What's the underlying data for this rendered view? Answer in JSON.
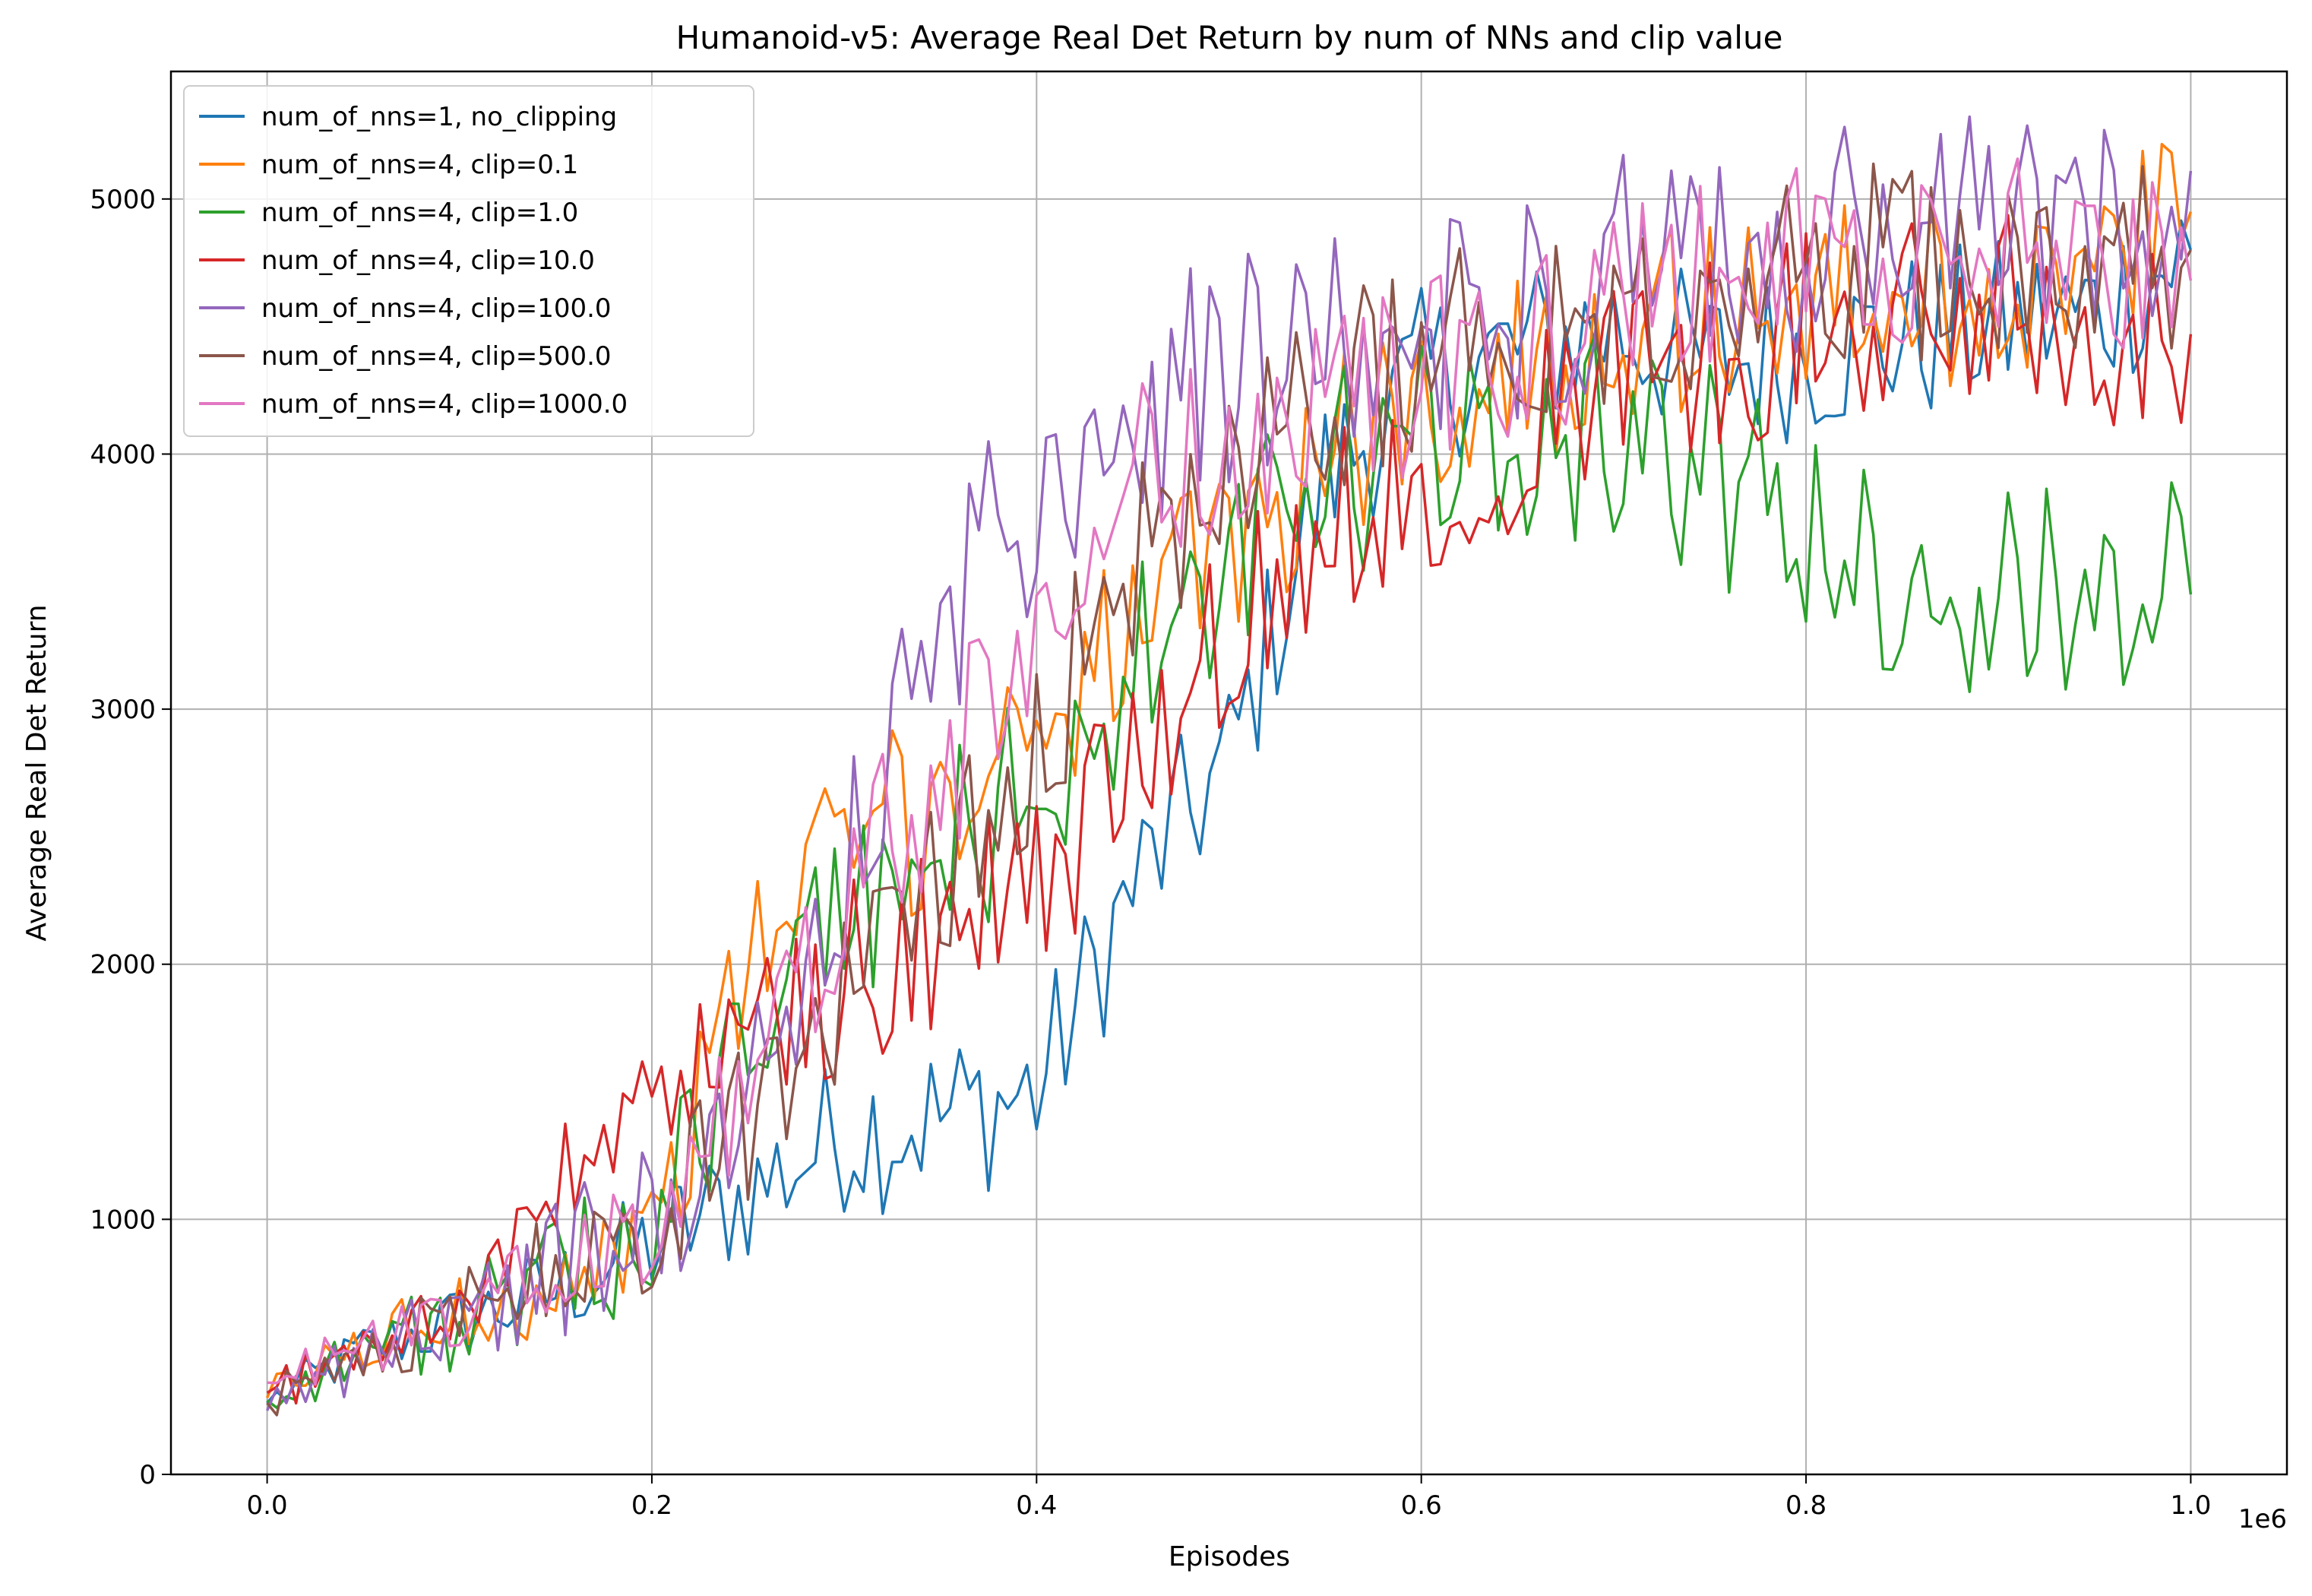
{
  "chart_data": {
    "type": "line",
    "title": "Humanoid-v5: Average Real Det Return by num of NNs and clip value",
    "xlabel": "Episodes",
    "ylabel": "Average Real Det Return",
    "x_offset_label": "1e6",
    "xlim": [
      -50000,
      1050000
    ],
    "ylim": [
      0,
      5500
    ],
    "x_ticks": [
      0,
      200000,
      400000,
      600000,
      800000,
      1000000
    ],
    "x_tick_labels": [
      "0.0",
      "0.2",
      "0.4",
      "0.6",
      "0.8",
      "1.0"
    ],
    "y_ticks": [
      0,
      1000,
      2000,
      3000,
      4000,
      5000
    ],
    "y_tick_labels": [
      "0",
      "1000",
      "2000",
      "3000",
      "4000",
      "5000"
    ],
    "grid": true,
    "legend_position": "top-left",
    "x": [
      0,
      50000,
      100000,
      150000,
      200000,
      250000,
      300000,
      350000,
      400000,
      450000,
      500000,
      550000,
      600000,
      650000,
      700000,
      750000,
      800000,
      850000,
      900000,
      950000,
      1000000
    ],
    "series": [
      {
        "name": "num_of_nns=1, no_clipping",
        "color": "#1f77b4",
        "noise": 220,
        "values": [
          280,
          490,
          600,
          720,
          900,
          1100,
          1350,
          1400,
          1500,
          2300,
          2800,
          3900,
          4300,
          4400,
          4500,
          4350,
          4400,
          4450,
          4500,
          4550,
          4800
        ]
      },
      {
        "name": "num_of_nns=4, clip=0.1",
        "color": "#ff7f0e",
        "noise": 240,
        "values": [
          300,
          510,
          620,
          780,
          950,
          2000,
          2500,
          2600,
          3000,
          3300,
          3600,
          4000,
          4200,
          4300,
          4500,
          4550,
          4600,
          4600,
          4650,
          4700,
          4950
        ]
      },
      {
        "name": "num_of_nns=4, clip=1.0",
        "color": "#2ca02c",
        "noise": 280,
        "values": [
          290,
          500,
          600,
          740,
          1000,
          1700,
          2200,
          2400,
          2700,
          3100,
          3500,
          3900,
          4000,
          4100,
          4100,
          3900,
          3700,
          3500,
          3400,
          3500,
          3450
        ]
      },
      {
        "name": "num_of_nns=4, clip=10.0",
        "color": "#d62728",
        "noise": 250,
        "values": [
          320,
          500,
          650,
          1100,
          1500,
          1700,
          1950,
          2100,
          2300,
          2800,
          3300,
          3700,
          3900,
          4100,
          4300,
          4400,
          4500,
          4500,
          4600,
          4500,
          4470
        ]
      },
      {
        "name": "num_of_nns=4, clip=100.0",
        "color": "#9467bd",
        "noise": 300,
        "values": [
          250,
          480,
          620,
          800,
          1000,
          1500,
          2300,
          3300,
          3900,
          4200,
          4300,
          4400,
          4500,
          4600,
          4700,
          4750,
          4800,
          4850,
          4900,
          4850,
          5110
        ]
      },
      {
        "name": "num_of_nns=4, clip=500.0",
        "color": "#8c564b",
        "noise": 260,
        "values": [
          280,
          490,
          620,
          820,
          980,
          1400,
          1900,
          2400,
          2900,
          3600,
          3900,
          4200,
          4400,
          4500,
          4600,
          4650,
          4700,
          4750,
          4800,
          4800,
          4800
        ]
      },
      {
        "name": "num_of_nns=4, clip=1000.0",
        "color": "#e377c2",
        "noise": 240,
        "values": [
          360,
          500,
          620,
          800,
          980,
          1500,
          2300,
          2700,
          3300,
          3900,
          4000,
          4200,
          4300,
          4400,
          4600,
          4700,
          4750,
          4750,
          4800,
          4800,
          4680
        ]
      }
    ]
  }
}
